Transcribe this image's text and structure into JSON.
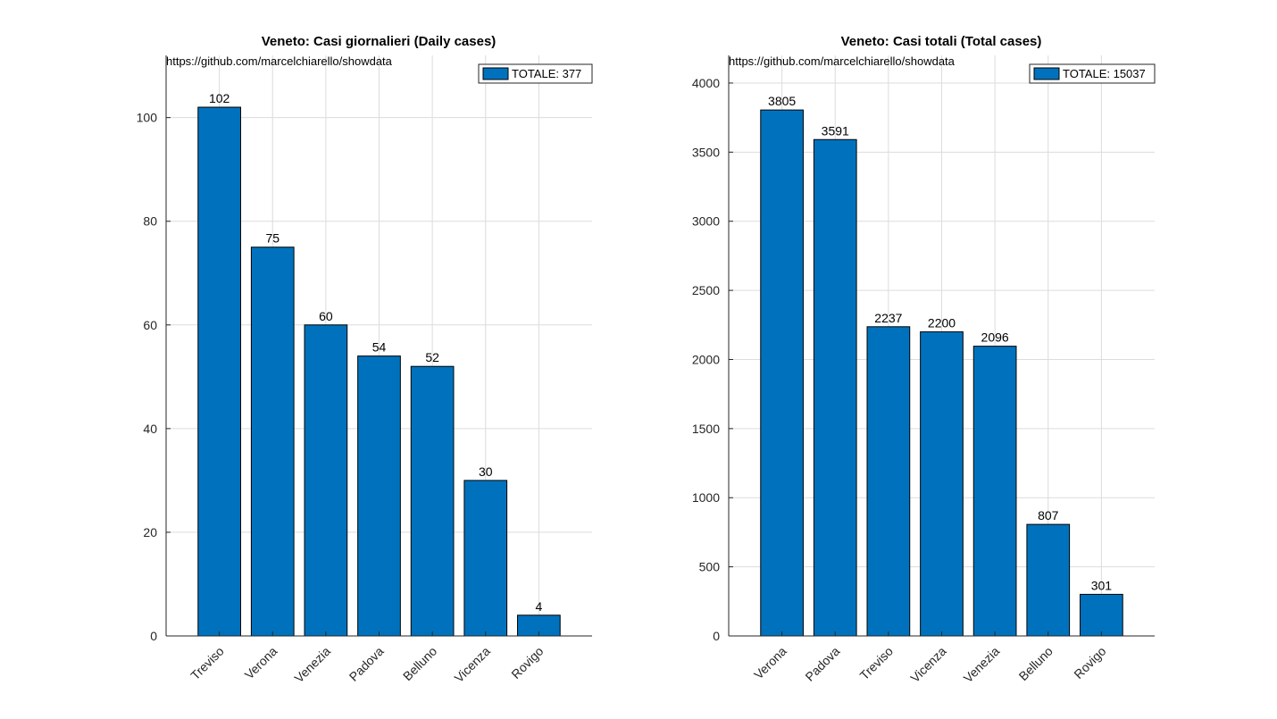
{
  "colors": {
    "bar": "#0072BD",
    "bar_edge": "#000000",
    "grid": "#dcdcdc",
    "axis": "#262626",
    "text": "#000000"
  },
  "chart_data": [
    {
      "type": "bar",
      "title": "Veneto: Casi giornalieri (Daily cases)",
      "source": "https://github.com/marcelchiarello/showdata",
      "legend": {
        "label": "TOTALE: 377",
        "placement": "top-right"
      },
      "categories": [
        "Treviso",
        "Verona",
        "Venezia",
        "Padova",
        "Belluno",
        "Vicenza",
        "Rovigo"
      ],
      "values": [
        102,
        75,
        60,
        54,
        52,
        30,
        4
      ],
      "data_labels": [
        "102",
        "75",
        "60",
        "54",
        "52",
        "30",
        "4"
      ],
      "ylim": [
        0,
        112
      ],
      "yticks": [
        0,
        20,
        40,
        60,
        80,
        100
      ],
      "grid": true,
      "xlabel": "",
      "ylabel": ""
    },
    {
      "type": "bar",
      "title": "Veneto: Casi totali (Total cases)",
      "source": "https://github.com/marcelchiarello/showdata",
      "legend": {
        "label": "TOTALE: 15037",
        "placement": "top-right"
      },
      "categories": [
        "Verona",
        "Padova",
        "Treviso",
        "Vicenza",
        "Venezia",
        "Belluno",
        "Rovigo"
      ],
      "values": [
        3805,
        3591,
        2237,
        2200,
        2096,
        807,
        301
      ],
      "data_labels": [
        "3805",
        "3591",
        "2237",
        "2200",
        "2096",
        "807",
        "301"
      ],
      "ylim": [
        0,
        4200
      ],
      "yticks": [
        0,
        500,
        1000,
        1500,
        2000,
        2500,
        3000,
        3500,
        4000
      ],
      "grid": true,
      "xlabel": "",
      "ylabel": ""
    }
  ]
}
